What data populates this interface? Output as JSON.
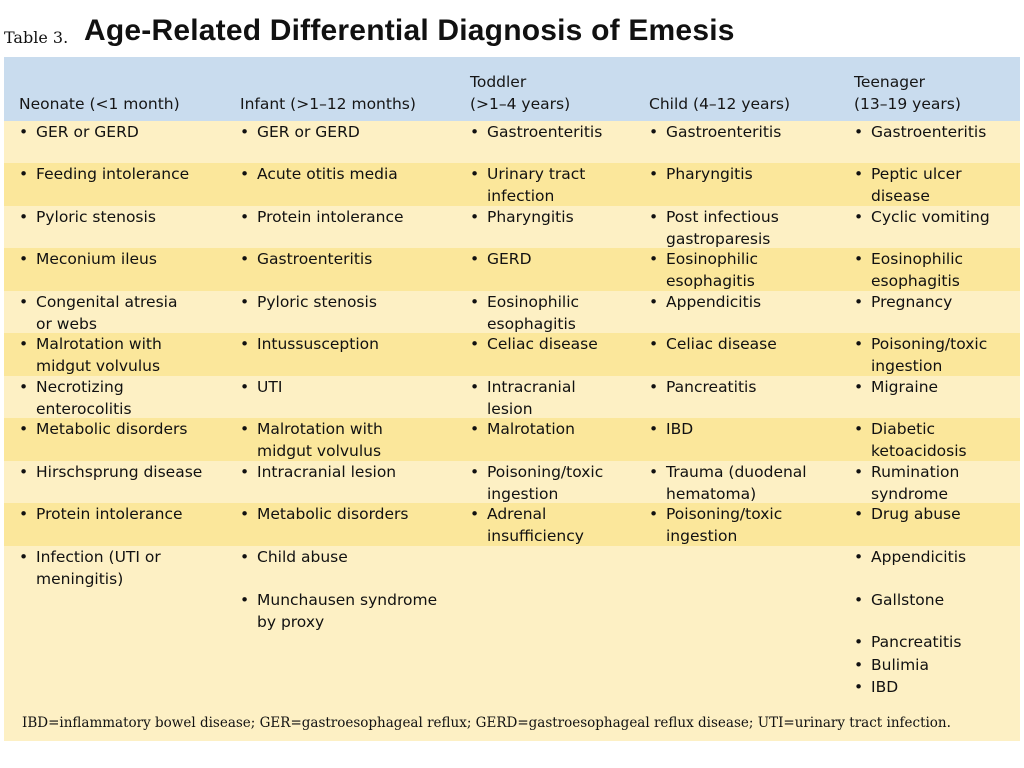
{
  "table": {
    "number": "Table 3.",
    "title": "Age-Related Differential Diagnosis of Emesis",
    "headers": [
      [
        "",
        "Neonate (<1 month)"
      ],
      [
        "",
        "Infant (>1–12 months)"
      ],
      [
        "Toddler",
        "(>1–4 years)"
      ],
      [
        "",
        "Child (4–12 years)"
      ],
      [
        "Teenager",
        "(13–19 years)"
      ]
    ],
    "columns": [
      [
        "GER or GERD",
        "Feeding intolerance",
        "Pyloric stenosis",
        "Meconium ileus",
        "Congenital atresia\nor webs",
        "Malrotation with\nmidgut volvulus",
        "Necrotizing\nenterocolitis",
        "Metabolic disorders",
        "Hirschsprung disease",
        "Protein intolerance",
        "Infection (UTI or\nmeningitis)"
      ],
      [
        "GER or GERD",
        "Acute otitis media",
        "Protein intolerance",
        "Gastroenteritis",
        "Pyloric stenosis",
        "Intussusception",
        "UTI",
        "Malrotation with\nmidgut volvulus",
        "Intracranial lesion",
        "Metabolic disorders",
        "Child abuse",
        "Munchausen syndrome\nby proxy"
      ],
      [
        "Gastroenteritis",
        "Urinary tract\ninfection",
        "Pharyngitis",
        "GERD",
        "Eosinophilic\nesophagitis",
        "Celiac disease",
        "Intracranial\nlesion",
        "Malrotation",
        "Poisoning/toxic\ningestion",
        "Adrenal\ninsufficiency"
      ],
      [
        "Gastroenteritis",
        "Pharyngitis",
        "Post infectious\ngastroparesis",
        "Eosinophilic\nesophagitis",
        "Appendicitis",
        "Celiac disease",
        "Pancreatitis",
        "IBD",
        "Trauma (duodenal\nhematoma)",
        "Poisoning/toxic\ningestion"
      ],
      [
        "Gastroenteritis",
        "Peptic ulcer\ndisease",
        "Cyclic vomiting",
        "Eosinophilic\nesophagitis",
        "Pregnancy",
        "Poisoning/toxic\ningestion",
        "Migraine",
        "Diabetic\nketoacidosis",
        "Rumination\nsyndrome",
        "Drug abuse",
        "Appendicitis",
        "Gallstone",
        "Pancreatitis",
        "Bulimia",
        "IBD"
      ]
    ],
    "footnote": "IBD=inflammatory bowel disease; GER=gastroesophageal reflux; GERD=gastroesophageal reflux disease; UTI=urinary tract infection."
  },
  "colors": {
    "header_band": "#c9dcee",
    "row_band_light": "#fdf0c4",
    "row_band_dark": "#fbe79b"
  }
}
